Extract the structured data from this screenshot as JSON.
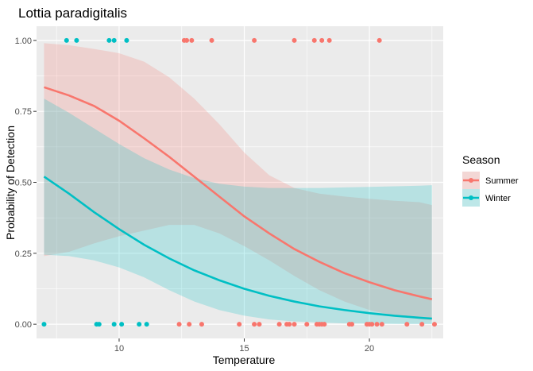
{
  "chart_data": {
    "type": "scatter",
    "title": "Lottia paradigitalis",
    "xlabel": "Temperature",
    "ylabel": "Probability of Detection",
    "xlim": [
      6.7,
      22.95
    ],
    "ylim": [
      -0.05,
      1.05
    ],
    "x_ticks": [
      10,
      15,
      20
    ],
    "x_tick_labels": [
      "10",
      "15",
      "20"
    ],
    "y_ticks": [
      0,
      0.25,
      0.5,
      0.75,
      1.0
    ],
    "y_tick_labels": [
      "0.00",
      "0.25",
      "0.50",
      "0.75",
      "1.00"
    ],
    "grid": true,
    "legend": {
      "title": "Season",
      "position": "right"
    },
    "series": [
      {
        "name": "Summer",
        "color": "#F8766D",
        "points": [
          {
            "x": 12.6,
            "y": 1
          },
          {
            "x": 12.7,
            "y": 1
          },
          {
            "x": 12.9,
            "y": 1
          },
          {
            "x": 13.7,
            "y": 1
          },
          {
            "x": 15.4,
            "y": 1
          },
          {
            "x": 17.0,
            "y": 1
          },
          {
            "x": 17.8,
            "y": 1
          },
          {
            "x": 18.1,
            "y": 1
          },
          {
            "x": 18.4,
            "y": 1
          },
          {
            "x": 20.4,
            "y": 1
          },
          {
            "x": 12.4,
            "y": 0
          },
          {
            "x": 12.8,
            "y": 0
          },
          {
            "x": 13.3,
            "y": 0
          },
          {
            "x": 14.8,
            "y": 0
          },
          {
            "x": 15.4,
            "y": 0
          },
          {
            "x": 15.6,
            "y": 0
          },
          {
            "x": 16.4,
            "y": 0
          },
          {
            "x": 16.7,
            "y": 0
          },
          {
            "x": 16.8,
            "y": 0
          },
          {
            "x": 17.0,
            "y": 0
          },
          {
            "x": 17.5,
            "y": 0
          },
          {
            "x": 17.9,
            "y": 0
          },
          {
            "x": 18.0,
            "y": 0
          },
          {
            "x": 18.1,
            "y": 0
          },
          {
            "x": 18.2,
            "y": 0
          },
          {
            "x": 19.2,
            "y": 0
          },
          {
            "x": 19.3,
            "y": 0
          },
          {
            "x": 19.9,
            "y": 0
          },
          {
            "x": 20.0,
            "y": 0
          },
          {
            "x": 20.1,
            "y": 0
          },
          {
            "x": 20.3,
            "y": 0
          },
          {
            "x": 20.5,
            "y": 0
          },
          {
            "x": 21.5,
            "y": 0
          },
          {
            "x": 22.1,
            "y": 0
          },
          {
            "x": 22.6,
            "y": 0
          }
        ],
        "fit": [
          {
            "x": 7.0,
            "y": 0.835,
            "lo": 0.24,
            "hi": 0.99
          },
          {
            "x": 8.0,
            "y": 0.806,
            "lo": 0.255,
            "hi": 0.983
          },
          {
            "x": 9.0,
            "y": 0.769,
            "lo": 0.285,
            "hi": 0.97
          },
          {
            "x": 10.0,
            "y": 0.717,
            "lo": 0.31,
            "hi": 0.955
          },
          {
            "x": 11.0,
            "y": 0.655,
            "lo": 0.33,
            "hi": 0.925
          },
          {
            "x": 12.0,
            "y": 0.59,
            "lo": 0.35,
            "hi": 0.87
          },
          {
            "x": 13.0,
            "y": 0.52,
            "lo": 0.35,
            "hi": 0.795
          },
          {
            "x": 14.0,
            "y": 0.45,
            "lo": 0.32,
            "hi": 0.705
          },
          {
            "x": 15.0,
            "y": 0.38,
            "lo": 0.275,
            "hi": 0.605
          },
          {
            "x": 16.0,
            "y": 0.32,
            "lo": 0.225,
            "hi": 0.525
          },
          {
            "x": 17.0,
            "y": 0.265,
            "lo": 0.17,
            "hi": 0.48
          },
          {
            "x": 18.0,
            "y": 0.22,
            "lo": 0.12,
            "hi": 0.46
          },
          {
            "x": 19.0,
            "y": 0.18,
            "lo": 0.08,
            "hi": 0.45
          },
          {
            "x": 20.0,
            "y": 0.148,
            "lo": 0.05,
            "hi": 0.442
          },
          {
            "x": 21.0,
            "y": 0.12,
            "lo": 0.03,
            "hi": 0.435
          },
          {
            "x": 22.0,
            "y": 0.098,
            "lo": 0.018,
            "hi": 0.43
          },
          {
            "x": 22.5,
            "y": 0.088,
            "lo": 0.013,
            "hi": 0.42
          }
        ]
      },
      {
        "name": "Winter",
        "color": "#00BFC4",
        "points": [
          {
            "x": 7.9,
            "y": 1
          },
          {
            "x": 8.3,
            "y": 1
          },
          {
            "x": 9.6,
            "y": 1
          },
          {
            "x": 9.8,
            "y": 1
          },
          {
            "x": 10.3,
            "y": 1
          },
          {
            "x": 7.0,
            "y": 0
          },
          {
            "x": 9.1,
            "y": 0
          },
          {
            "x": 9.2,
            "y": 0
          },
          {
            "x": 9.8,
            "y": 0
          },
          {
            "x": 10.1,
            "y": 0
          },
          {
            "x": 10.8,
            "y": 0
          },
          {
            "x": 11.1,
            "y": 0
          }
        ],
        "fit": [
          {
            "x": 7.0,
            "y": 0.52,
            "lo": 0.245,
            "hi": 0.795
          },
          {
            "x": 8.0,
            "y": 0.46,
            "lo": 0.24,
            "hi": 0.745
          },
          {
            "x": 9.0,
            "y": 0.395,
            "lo": 0.225,
            "hi": 0.69
          },
          {
            "x": 10.0,
            "y": 0.335,
            "lo": 0.2,
            "hi": 0.635
          },
          {
            "x": 11.0,
            "y": 0.28,
            "lo": 0.165,
            "hi": 0.585
          },
          {
            "x": 12.0,
            "y": 0.232,
            "lo": 0.12,
            "hi": 0.545
          },
          {
            "x": 13.0,
            "y": 0.19,
            "lo": 0.08,
            "hi": 0.515
          },
          {
            "x": 14.0,
            "y": 0.155,
            "lo": 0.05,
            "hi": 0.495
          },
          {
            "x": 15.0,
            "y": 0.125,
            "lo": 0.03,
            "hi": 0.485
          },
          {
            "x": 16.0,
            "y": 0.1,
            "lo": 0.017,
            "hi": 0.48
          },
          {
            "x": 17.0,
            "y": 0.08,
            "lo": 0.01,
            "hi": 0.48
          },
          {
            "x": 18.0,
            "y": 0.063,
            "lo": 0.006,
            "hi": 0.48
          },
          {
            "x": 19.0,
            "y": 0.05,
            "lo": 0.003,
            "hi": 0.482
          },
          {
            "x": 20.0,
            "y": 0.039,
            "lo": 0.002,
            "hi": 0.484
          },
          {
            "x": 21.0,
            "y": 0.03,
            "lo": 0.001,
            "hi": 0.486
          },
          {
            "x": 22.0,
            "y": 0.023,
            "lo": 0.0007,
            "hi": 0.488
          },
          {
            "x": 22.5,
            "y": 0.02,
            "lo": 0.0005,
            "hi": 0.49
          }
        ]
      }
    ]
  }
}
